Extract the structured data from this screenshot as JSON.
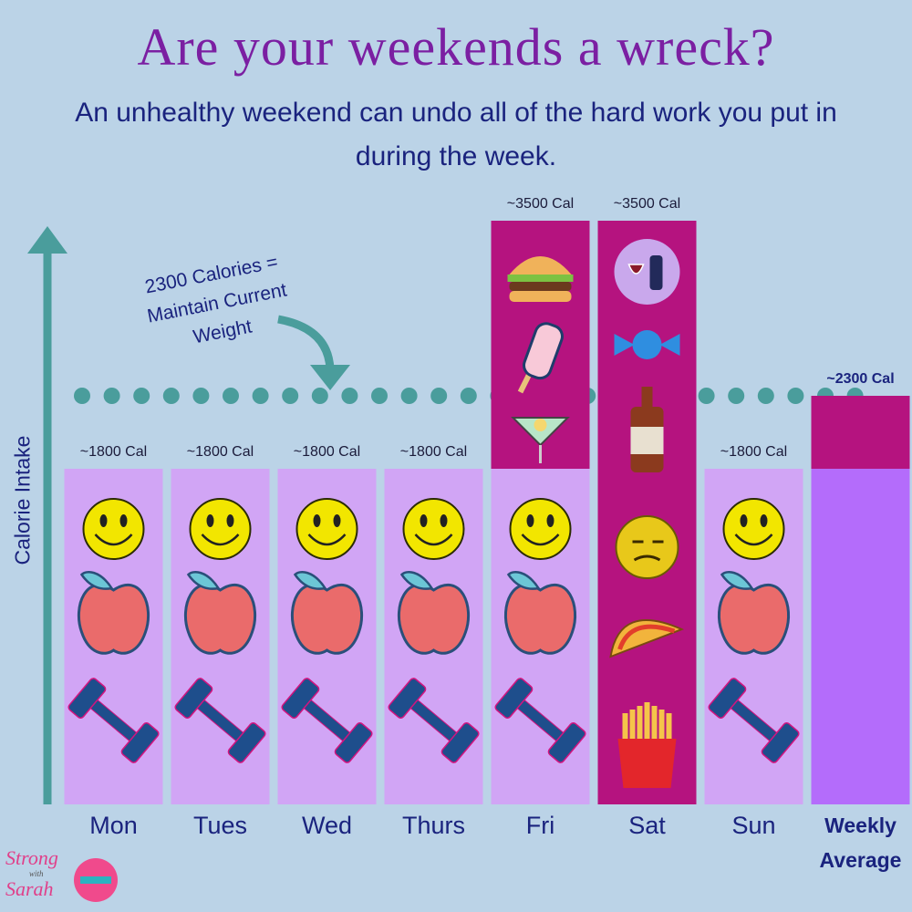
{
  "chart_data": {
    "type": "bar",
    "title": "Are your weekends a wreck?",
    "subtitle": "An unhealthy weekend can undo all of the hard work you put in during the week.",
    "y_label": "Calorie Intake",
    "categories": [
      "Mon",
      "Tues",
      "Wed",
      "Thurs",
      "Fri",
      "Sat",
      "Sun",
      "Weekly Average"
    ],
    "series": [
      {
        "color": "#b5137f",
        "values": [
          1800,
          1800,
          1800,
          1800,
          3500,
          3500,
          1800,
          2300
        ],
        "value_labels": [
          "~1800 Cal",
          "~1800 Cal",
          "~1800 Cal",
          "~1800 Cal",
          "~3500 Cal",
          "~3500 Cal",
          "~1800 Cal",
          "~2300 Cal"
        ]
      },
      {
        "color": "#d1a5f5",
        "colors": [
          "#d1a5f5",
          "#d1a5f5",
          "#d1a5f5",
          "#d1a5f5",
          "#d1a5f5",
          "#d1a5f5",
          "#d1a5f5",
          "#b46cfb"
        ],
        "values": [
          1800,
          1800,
          1800,
          1800,
          1800,
          null,
          1800,
          1800
        ]
      }
    ],
    "ylim": [
      -500,
      3500
    ],
    "reference": {
      "value": 2300,
      "label": [
        "2300 Calories =",
        "Maintain Current",
        "Weight"
      ]
    },
    "logo": [
      "Strong",
      "with",
      "Sarah"
    ]
  }
}
